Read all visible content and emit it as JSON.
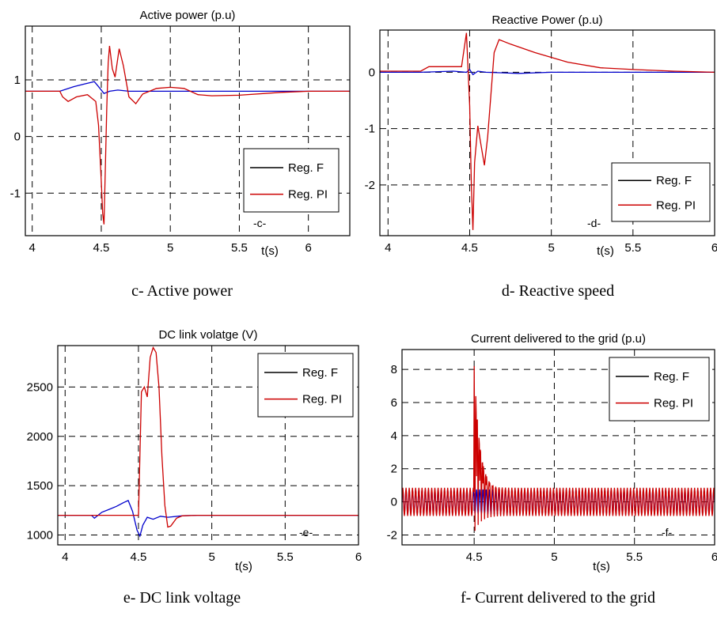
{
  "chart_data": [
    {
      "type": "line",
      "id": "c",
      "title": "Active power (p.u)",
      "caption": "c- Active power",
      "panel_label": "-c-",
      "xlabel": "t(s)",
      "xlim": [
        3.95,
        6.3
      ],
      "ylim": [
        -1.75,
        1.95
      ],
      "xticks": [
        4,
        4.5,
        5,
        5.5,
        6
      ],
      "xtick_labels": [
        "4",
        "4.5",
        "5",
        "5.5",
        "6"
      ],
      "yticks": [
        -1,
        0,
        1
      ],
      "ytick_labels": [
        "-1",
        "0",
        "1"
      ],
      "grid": true,
      "legend_position": "lower-right",
      "series": [
        {
          "name": "Reg. F",
          "color": "#0000cc",
          "x": [
            3.95,
            4.2,
            4.3,
            4.38,
            4.45,
            4.48,
            4.52,
            4.56,
            4.62,
            4.7,
            4.8,
            5.0,
            5.3,
            6.0,
            6.3
          ],
          "y": [
            0.8,
            0.8,
            0.88,
            0.93,
            0.97,
            0.88,
            0.76,
            0.8,
            0.82,
            0.8,
            0.8,
            0.8,
            0.8,
            0.8,
            0.8
          ]
        },
        {
          "name": "Reg. PI",
          "color": "#cc0000",
          "x": [
            3.95,
            4.2,
            4.22,
            4.26,
            4.32,
            4.4,
            4.46,
            4.48,
            4.5,
            4.51,
            4.52,
            4.53,
            4.54,
            4.55,
            4.56,
            4.58,
            4.6,
            4.63,
            4.66,
            4.7,
            4.75,
            4.8,
            4.9,
            5.0,
            5.1,
            5.2,
            5.3,
            5.5,
            5.8,
            6.0,
            6.3
          ],
          "y": [
            0.8,
            0.8,
            0.7,
            0.62,
            0.7,
            0.74,
            0.62,
            0.2,
            -0.8,
            -1.35,
            -1.55,
            -0.5,
            0.5,
            1.3,
            1.6,
            1.2,
            1.05,
            1.55,
            1.25,
            0.7,
            0.58,
            0.75,
            0.85,
            0.87,
            0.85,
            0.74,
            0.72,
            0.73,
            0.78,
            0.8,
            0.8
          ]
        }
      ]
    },
    {
      "type": "line",
      "id": "d",
      "title": "Reactive Power (p.u)",
      "caption": "d- Reactive speed",
      "panel_label": "-d-",
      "xlabel": "t(s)",
      "xlim": [
        3.95,
        6.0
      ],
      "ylim": [
        -2.9,
        0.75
      ],
      "xticks": [
        4,
        4.5,
        5,
        5.5,
        6
      ],
      "xtick_labels": [
        "4",
        "4.5",
        "5",
        "5.5",
        "6"
      ],
      "yticks": [
        -2,
        -1,
        0
      ],
      "ytick_labels": [
        "-2",
        "-1",
        "0"
      ],
      "grid": true,
      "legend_position": "lower-right",
      "series": [
        {
          "name": "Reg. F",
          "color": "#0000cc",
          "x": [
            3.95,
            4.2,
            4.4,
            4.48,
            4.5,
            4.52,
            4.55,
            4.6,
            4.8,
            5.0,
            5.5,
            6.0
          ],
          "y": [
            0.0,
            0.0,
            0.02,
            0.0,
            0.05,
            -0.04,
            0.02,
            0.0,
            -0.02,
            0.0,
            0.0,
            0.0
          ]
        },
        {
          "name": "Reg. PI",
          "color": "#cc0000",
          "x": [
            3.95,
            4.2,
            4.25,
            4.45,
            4.48,
            4.5,
            4.51,
            4.52,
            4.53,
            4.55,
            4.57,
            4.59,
            4.61,
            4.63,
            4.65,
            4.68,
            4.75,
            4.9,
            5.1,
            5.3,
            5.5,
            5.75,
            6.0
          ],
          "y": [
            0.02,
            0.02,
            0.1,
            0.1,
            0.7,
            -0.6,
            -2.0,
            -2.8,
            -1.6,
            -0.95,
            -1.3,
            -1.65,
            -1.15,
            -0.4,
            0.35,
            0.58,
            0.5,
            0.35,
            0.18,
            0.08,
            0.05,
            0.02,
            0.0
          ]
        }
      ]
    },
    {
      "type": "line",
      "id": "e",
      "title": "DC link volatge (V)",
      "caption": "e- DC link voltage",
      "panel_label": "-e-",
      "xlabel": "t(s)",
      "xlim": [
        3.95,
        6.0
      ],
      "ylim": [
        900,
        2920
      ],
      "xticks": [
        4,
        4.5,
        5,
        5.5,
        6
      ],
      "xtick_labels": [
        "4",
        "4.5",
        "5",
        "5.5",
        "6"
      ],
      "yticks": [
        1000,
        1500,
        2000,
        2500
      ],
      "ytick_labels": [
        "1000",
        "1500",
        "2000",
        "2500"
      ],
      "grid": true,
      "legend_position": "top-right",
      "series": [
        {
          "name": "Reg. F",
          "color": "#0000cc",
          "x": [
            3.95,
            4.18,
            4.2,
            4.25,
            4.3,
            4.35,
            4.4,
            4.43,
            4.46,
            4.49,
            4.51,
            4.53,
            4.56,
            4.6,
            4.65,
            4.7,
            4.8,
            4.9,
            5.0,
            6.0
          ],
          "y": [
            1200,
            1200,
            1170,
            1230,
            1260,
            1290,
            1330,
            1350,
            1240,
            1050,
            990,
            1100,
            1180,
            1160,
            1190,
            1180,
            1195,
            1200,
            1200,
            1200
          ]
        },
        {
          "name": "Reg. PI",
          "color": "#cc0000",
          "x": [
            3.95,
            4.5,
            4.52,
            4.54,
            4.56,
            4.58,
            4.6,
            4.62,
            4.64,
            4.66,
            4.68,
            4.7,
            4.72,
            4.76,
            4.8,
            4.9,
            6.0
          ],
          "y": [
            1200,
            1200,
            2450,
            2500,
            2400,
            2800,
            2900,
            2850,
            2500,
            1800,
            1300,
            1080,
            1090,
            1170,
            1195,
            1200,
            1200
          ]
        }
      ]
    },
    {
      "type": "line",
      "id": "f",
      "title": "Current delivered to the grid (p.u)",
      "caption": "f- Current delivered to the grid",
      "panel_label": "-f-",
      "xlabel": "t(s)",
      "xlim": [
        4.05,
        6.0
      ],
      "ylim": [
        -2.6,
        9.2
      ],
      "xticks": [
        4.5,
        5,
        5.5,
        6
      ],
      "xtick_labels": [
        "4.5",
        "5",
        "5.5",
        "6"
      ],
      "yticks": [
        -2,
        0,
        2,
        4,
        6,
        8
      ],
      "ytick_labels": [
        "-2",
        "0",
        "2",
        "4",
        "6",
        "8"
      ],
      "grid": true,
      "legend_position": "top-right",
      "series": [
        {
          "name": "Reg. F",
          "color": "#0000cc",
          "x": [
            4.05,
            6.0
          ],
          "y": [
            0,
            0
          ],
          "oscillation": {
            "amplitude": 0.75,
            "frequency_hz": 50
          }
        },
        {
          "name": "Reg. PI",
          "color": "#cc0000",
          "x": [
            4.05,
            6.0
          ],
          "y": [
            0,
            0
          ],
          "oscillation": {
            "amplitude": 0.85,
            "frequency_hz": 50,
            "transient_start": 4.5,
            "transient_peak": 8.2,
            "transient_decay_s": 0.04
          }
        }
      ]
    }
  ]
}
